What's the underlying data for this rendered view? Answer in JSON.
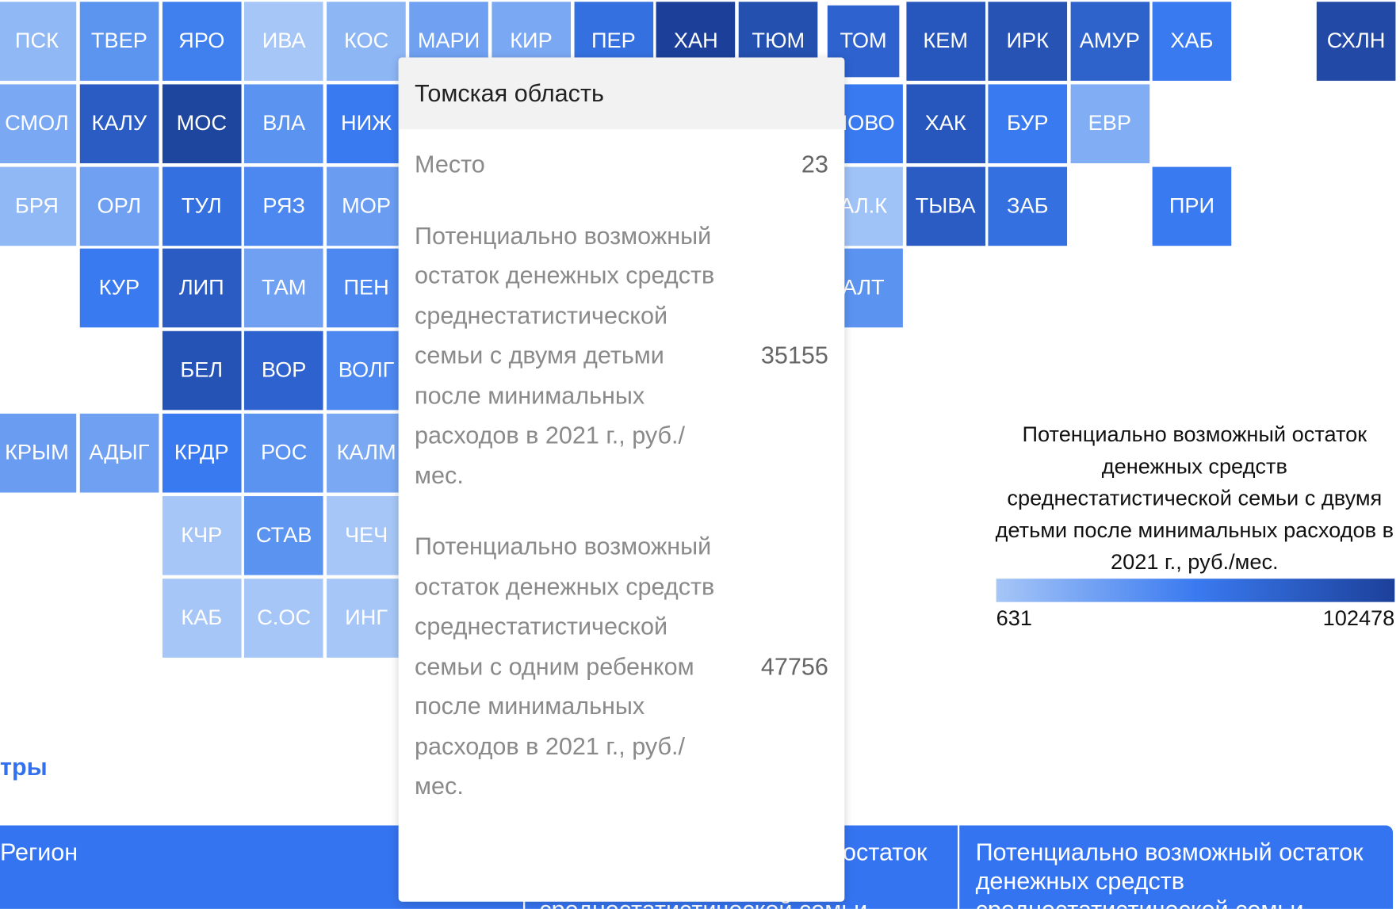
{
  "tiles": [
    {
      "label": "ПСК",
      "color": "#8fb8f5"
    },
    {
      "label": "ТВЕР",
      "color": "#5c95f0"
    },
    {
      "label": "ЯРО",
      "color": "#3f7fee"
    },
    {
      "label": "ИВА",
      "color": "#a6c6f7"
    },
    {
      "label": "КОС",
      "color": "#8db6f5"
    },
    {
      "label": "МАРИ",
      "color": "#6fa0f2"
    },
    {
      "label": "КИР",
      "color": "#7aa8f3"
    },
    {
      "label": "ПЕР",
      "color": "#3570e0"
    },
    {
      "label": "ХАН",
      "color": "#1c409a"
    },
    {
      "label": "ТЮМ",
      "color": "#2450b0"
    },
    {
      "label": "ТОМ",
      "color": "#2e62cf"
    },
    {
      "label": "КЕМ",
      "color": "#2757bd"
    },
    {
      "label": "ИРК",
      "color": "#2753b5"
    },
    {
      "label": "АМУР",
      "color": "#2f63cc"
    },
    {
      "label": "ХАБ",
      "color": "#3a7af0"
    },
    {
      "label": "СХЛН",
      "color": "#2249a5"
    },
    {
      "label": "СМОЛ",
      "color": "#7aa8f3"
    },
    {
      "label": "КАЛУ",
      "color": "#2a5cc4"
    },
    {
      "label": "МОС",
      "color": "#1f469f"
    },
    {
      "label": "ВЛА",
      "color": "#5a93f0"
    },
    {
      "label": "НИЖ",
      "color": "#3a7af0"
    },
    {
      "label": "НОВО",
      "color": "#3a7af0"
    },
    {
      "label": "ХАК",
      "color": "#2757bd"
    },
    {
      "label": "БУР",
      "color": "#3a7af0"
    },
    {
      "label": "ЕВР",
      "color": "#80adf4"
    },
    {
      "label": "БРЯ",
      "color": "#8fb8f5"
    },
    {
      "label": "ОРЛ",
      "color": "#6fa0f2"
    },
    {
      "label": "ТУЛ",
      "color": "#3570e0"
    },
    {
      "label": "РЯЗ",
      "color": "#4c88ef"
    },
    {
      "label": "МОР",
      "color": "#6a9df2"
    },
    {
      "label": "АЛ.К",
      "color": "#a0c3f7"
    },
    {
      "label": "ТЫВА",
      "color": "#2a5cc4"
    },
    {
      "label": "ЗАБ",
      "color": "#3570e0"
    },
    {
      "label": "ПРИ",
      "color": "#3a7af0"
    },
    {
      "label": "КУР",
      "color": "#3a7af0"
    },
    {
      "label": "ЛИП",
      "color": "#2a5cc4"
    },
    {
      "label": "ТАМ",
      "color": "#6fa0f2"
    },
    {
      "label": "ПЕН",
      "color": "#4c88ef"
    },
    {
      "label": "АЛТ",
      "color": "#5a93f0"
    },
    {
      "label": "БЕЛ",
      "color": "#2553b5"
    },
    {
      "label": "ВОР",
      "color": "#2e62cf"
    },
    {
      "label": "ВОЛГ",
      "color": "#4c88ef"
    },
    {
      "label": "КРЫМ",
      "color": "#6a9df2"
    },
    {
      "label": "АДЫГ",
      "color": "#6fa0f2"
    },
    {
      "label": "КРДР",
      "color": "#3a7af0"
    },
    {
      "label": "РОС",
      "color": "#5a93f0"
    },
    {
      "label": "КАЛМ",
      "color": "#7aa8f3"
    },
    {
      "label": "КЧР",
      "color": "#a6c6f7"
    },
    {
      "label": "СТАВ",
      "color": "#5a93f0"
    },
    {
      "label": "ЧЕЧ",
      "color": "#a6c6f7"
    },
    {
      "label": "КАБ",
      "color": "#a6c6f7"
    },
    {
      "label": "С.ОС",
      "color": "#a6c6f7"
    },
    {
      "label": "ИНГ",
      "color": "#a6c6f7"
    }
  ],
  "tooltip": {
    "title": "Томская область",
    "rows": [
      {
        "label": "Место",
        "value": 23
      },
      {
        "label": "Потенциально возможный остаток денежных средств среднестатистической семьи с двумя детьми после минимальных расходов в 2021 г., руб./мес.",
        "value": 35155
      },
      {
        "label": "Потенциально возможный остаток денежных средств среднестатистической семьи с одним ребенком после минимальных расходов в 2021 г., руб./мес.",
        "value": 47756
      }
    ]
  },
  "legend": {
    "title": "Потенциально возможный остаток денежных средств среднестатистической семьи с двумя детьми после минимальных расходов в 2021 г., руб./мес.",
    "min": 631,
    "max": 102478,
    "colors": [
      "#a6c6f7",
      "#3a7af0",
      "#1c409a"
    ]
  },
  "section_title": "тры",
  "table": {
    "headers": [
      "Регион",
      "Потенциально возможный остаток денежных средств среднестатистической семьи",
      "Потенциально возможный остаток денежных средств среднестатистической семьи"
    ]
  }
}
